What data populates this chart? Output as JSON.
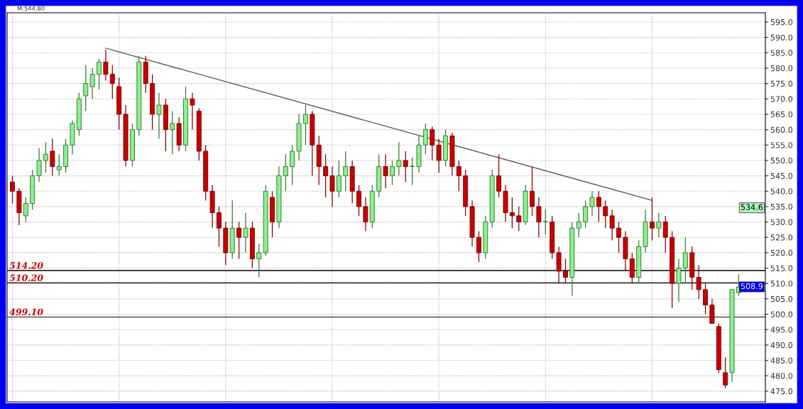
{
  "chart_data": {
    "type": "candlestick",
    "categories": [
      null,
      null,
      null,
      null,
      null,
      null,
      null,
      null,
      null,
      null,
      null,
      null,
      null,
      null,
      null,
      null,
      null,
      null,
      null,
      null,
      null,
      null,
      null,
      null,
      null,
      null,
      null,
      null,
      null,
      null,
      null,
      null,
      null,
      null,
      null,
      null,
      null,
      null,
      null,
      null,
      null,
      null,
      null,
      null,
      null,
      null,
      null,
      null,
      null,
      null,
      null,
      null,
      null,
      null,
      null,
      null,
      null,
      null,
      null,
      null,
      null,
      null,
      null,
      null,
      null,
      null,
      null,
      null,
      null,
      null,
      null,
      null,
      null,
      null,
      null,
      null,
      null,
      null,
      null,
      null,
      null,
      null,
      null,
      null,
      null,
      null,
      null,
      null,
      null,
      null,
      null,
      null,
      null,
      null,
      null,
      null,
      null,
      null,
      null,
      null,
      null,
      null,
      null,
      null,
      null,
      null,
      null,
      null,
      null,
      null
    ],
    "ohlc": [
      [
        543,
        545,
        536,
        540
      ],
      [
        540,
        541,
        529,
        533
      ],
      [
        532,
        538,
        530,
        536
      ],
      [
        536,
        547,
        534,
        545
      ],
      [
        545,
        554,
        543,
        550
      ],
      [
        550,
        556,
        546,
        552
      ],
      [
        553,
        557,
        545,
        548
      ],
      [
        547,
        552,
        545,
        548
      ],
      [
        548,
        557,
        546,
        555
      ],
      [
        555,
        563,
        552,
        562
      ],
      [
        560,
        572,
        558,
        570
      ],
      [
        571,
        581,
        566,
        575
      ],
      [
        574,
        580,
        570,
        578
      ],
      [
        578,
        583,
        573,
        582
      ],
      [
        582,
        586,
        576,
        578
      ],
      [
        578,
        581,
        570,
        575
      ],
      [
        574,
        577,
        560,
        565
      ],
      [
        565,
        568,
        548,
        550
      ],
      [
        550,
        562,
        548,
        560
      ],
      [
        560,
        584,
        558,
        582
      ],
      [
        582,
        584,
        572,
        575
      ],
      [
        575,
        578,
        560,
        565
      ],
      [
        565,
        572,
        557,
        568
      ],
      [
        568,
        570,
        553,
        560
      ],
      [
        560,
        566,
        552,
        562
      ],
      [
        562,
        564,
        553,
        555
      ],
      [
        555,
        574,
        553,
        570
      ],
      [
        570,
        572,
        560,
        568
      ],
      [
        566,
        567,
        550,
        553
      ],
      [
        553,
        555,
        537,
        540
      ],
      [
        540,
        542,
        528,
        533
      ],
      [
        533,
        535,
        522,
        528
      ],
      [
        528,
        530,
        516,
        520
      ],
      [
        520,
        537,
        518,
        528
      ],
      [
        528,
        530,
        518,
        525
      ],
      [
        525,
        533,
        520,
        528
      ],
      [
        528,
        530,
        515,
        518
      ],
      [
        518,
        523,
        512,
        520
      ],
      [
        520,
        542,
        519,
        540
      ],
      [
        538,
        540,
        525,
        530
      ],
      [
        530,
        548,
        528,
        545
      ],
      [
        545,
        552,
        540,
        548
      ],
      [
        548,
        555,
        542,
        553
      ],
      [
        553,
        565,
        550,
        562
      ],
      [
        562,
        568,
        555,
        565
      ],
      [
        565,
        566,
        545,
        555
      ],
      [
        555,
        558,
        542,
        548
      ],
      [
        548,
        552,
        538,
        545
      ],
      [
        545,
        548,
        535,
        540
      ],
      [
        540,
        550,
        538,
        545
      ],
      [
        545,
        553,
        540,
        548
      ],
      [
        548,
        550,
        536,
        540
      ],
      [
        540,
        542,
        532,
        535
      ],
      [
        535,
        538,
        527,
        530
      ],
      [
        530,
        542,
        528,
        540
      ],
      [
        540,
        552,
        538,
        548
      ],
      [
        548,
        552,
        541,
        545
      ],
      [
        545,
        550,
        542,
        548
      ],
      [
        548,
        556,
        545,
        550
      ],
      [
        550,
        553,
        543,
        548
      ],
      [
        548,
        551,
        542,
        548
      ],
      [
        548,
        558,
        546,
        555
      ],
      [
        555,
        562,
        552,
        560
      ],
      [
        560,
        561,
        550,
        555
      ],
      [
        555,
        557,
        546,
        550
      ],
      [
        550,
        560,
        548,
        558
      ],
      [
        558,
        559,
        545,
        548
      ],
      [
        548,
        550,
        540,
        545
      ],
      [
        545,
        547,
        532,
        535
      ],
      [
        535,
        537,
        522,
        525
      ],
      [
        525,
        527,
        517,
        520
      ],
      [
        520,
        532,
        518,
        530
      ],
      [
        530,
        547,
        528,
        545
      ],
      [
        545,
        552,
        538,
        540
      ],
      [
        540,
        542,
        530,
        533
      ],
      [
        533,
        538,
        528,
        532
      ],
      [
        532,
        535,
        527,
        530
      ],
      [
        530,
        542,
        529,
        540
      ],
      [
        540,
        548,
        532,
        535
      ],
      [
        535,
        538,
        525,
        530
      ],
      [
        530,
        534,
        526,
        530
      ],
      [
        530,
        532,
        518,
        520
      ],
      [
        520,
        522,
        510,
        514
      ],
      [
        514,
        518,
        510,
        512
      ],
      [
        512,
        530,
        506,
        528
      ],
      [
        528,
        533,
        525,
        530
      ],
      [
        530,
        537,
        528,
        535
      ],
      [
        535,
        540,
        532,
        538
      ],
      [
        538,
        540,
        530,
        535
      ],
      [
        535,
        537,
        528,
        532
      ],
      [
        532,
        534,
        524,
        528
      ],
      [
        528,
        530,
        520,
        525
      ],
      [
        525,
        527,
        514,
        518
      ],
      [
        518,
        520,
        510,
        512
      ],
      [
        512,
        524,
        510,
        522
      ],
      [
        522,
        534,
        520,
        530
      ],
      [
        530,
        538,
        524,
        528
      ],
      [
        528,
        533,
        525,
        530
      ],
      [
        530,
        532,
        520,
        525
      ],
      [
        525,
        527,
        502,
        510
      ],
      [
        510,
        518,
        504,
        515
      ],
      [
        515,
        525,
        510,
        520
      ],
      [
        520,
        522,
        508,
        512
      ],
      [
        512,
        516,
        505,
        508
      ],
      [
        508,
        510,
        500,
        503
      ],
      [
        503,
        505,
        497,
        497
      ],
      [
        496,
        497,
        481,
        482
      ],
      [
        481,
        486,
        476,
        477
      ],
      [
        481,
        508,
        478,
        508
      ],
      [
        507,
        513,
        506,
        508.9
      ]
    ],
    "colors": [
      "#c80000",
      "#c80000",
      "#90ee90",
      "#90ee90",
      "#90ee90",
      "#90ee90",
      "#c80000",
      "#90ee90",
      "#90ee90",
      "#90ee90",
      "#90ee90",
      "#90ee90",
      "#90ee90",
      "#90ee90",
      "#c80000",
      "#c80000",
      "#c80000",
      "#c80000",
      "#90ee90",
      "#90ee90",
      "#c80000",
      "#c80000",
      "#90ee90",
      "#c80000",
      "#90ee90",
      "#c80000",
      "#90ee90",
      "#c80000",
      "#c80000",
      "#c80000",
      "#c80000",
      "#c80000",
      "#c80000",
      "#90ee90",
      "#c80000",
      "#90ee90",
      "#c80000",
      "#90ee90",
      "#90ee90",
      "#c80000",
      "#90ee90",
      "#90ee90",
      "#90ee90",
      "#90ee90",
      "#90ee90",
      "#c80000",
      "#c80000",
      "#c80000",
      "#c80000",
      "#90ee90",
      "#90ee90",
      "#c80000",
      "#c80000",
      "#c80000",
      "#90ee90",
      "#90ee90",
      "#c80000",
      "#90ee90",
      "#90ee90",
      "#c80000",
      "#90ee90",
      "#90ee90",
      "#90ee90",
      "#c80000",
      "#c80000",
      "#90ee90",
      "#c80000",
      "#c80000",
      "#c80000",
      "#c80000",
      "#c80000",
      "#90ee90",
      "#90ee90",
      "#c80000",
      "#c80000",
      "#c80000",
      "#c80000",
      "#90ee90",
      "#c80000",
      "#c80000",
      "#90ee90",
      "#c80000",
      "#c80000",
      "#c80000",
      "#90ee90",
      "#90ee90",
      "#90ee90",
      "#90ee90",
      "#c80000",
      "#c80000",
      "#c80000",
      "#c80000",
      "#c80000",
      "#c80000",
      "#90ee90",
      "#90ee90",
      "#c80000",
      "#90ee90",
      "#c80000",
      "#c80000",
      "#90ee90",
      "#90ee90",
      "#c80000",
      "#c80000",
      "#c80000",
      "#c80000",
      "#c80000",
      "#c80000",
      "#90ee90",
      "#90ee90"
    ],
    "series": [
      {
        "type": "line",
        "color": "#555555",
        "values": [
          null,
          null,
          null,
          null,
          null,
          null,
          null,
          null,
          null,
          null,
          null,
          null,
          null,
          null,
          586.5,
          null,
          null,
          null,
          null,
          null,
          null,
          null,
          null,
          null,
          null,
          null,
          null,
          null,
          null,
          null,
          null,
          null,
          null,
          null,
          null,
          null,
          null,
          null,
          null,
          null,
          null,
          null,
          null,
          null,
          null,
          null,
          null,
          null,
          null,
          null,
          null,
          null,
          null,
          null,
          null,
          null,
          null,
          null,
          null,
          null,
          null,
          null,
          null,
          null,
          null,
          null,
          null,
          null,
          null,
          null,
          null,
          null,
          null,
          null,
          null,
          null,
          null,
          null,
          null,
          null,
          null,
          null,
          null,
          null,
          null,
          null,
          null,
          null,
          null,
          null,
          null,
          null,
          null,
          null,
          null,
          null,
          537,
          null,
          null,
          null,
          null,
          null,
          null,
          null,
          null,
          null,
          null,
          null,
          null,
          null
        ]
      }
    ],
    "ylim": [
      471.5,
      598
    ],
    "yticks": [
      {
        "value": 475,
        "label": "475.0"
      },
      {
        "value": 480,
        "label": "480.0"
      },
      {
        "value": 485,
        "label": "485.0"
      },
      {
        "value": 490,
        "label": "490.0"
      },
      {
        "value": 495,
        "label": "495.0"
      },
      {
        "value": 500,
        "label": "500.0"
      },
      {
        "value": 505,
        "label": "505.0"
      },
      {
        "value": 510,
        "label": "510.0"
      },
      {
        "value": 515,
        "label": "515.0"
      },
      {
        "value": 520,
        "label": "520.0"
      },
      {
        "value": 525,
        "label": "525.0"
      },
      {
        "value": 530,
        "label": "530.0"
      },
      {
        "value": 535,
        "label": "535.0"
      },
      {
        "value": 540,
        "label": "540.0"
      },
      {
        "value": 545,
        "label": "545.0"
      },
      {
        "value": 550,
        "label": "550.0"
      },
      {
        "value": 555,
        "label": "555.0"
      },
      {
        "value": 560,
        "label": "560.0"
      },
      {
        "value": 565,
        "label": "565.0"
      },
      {
        "value": 570,
        "label": "570.0"
      },
      {
        "value": 575,
        "label": "575.0"
      },
      {
        "value": 580,
        "label": "580.0"
      },
      {
        "value": 585,
        "label": "585.0"
      },
      {
        "value": 590,
        "label": "590.0"
      },
      {
        "value": 595,
        "label": "595.0"
      }
    ],
    "ref_lines": [
      {
        "axis": "y",
        "value": 514.2,
        "label": "514.20",
        "color": "#000000"
      },
      {
        "axis": "y",
        "value": 510.2,
        "label": "510.20",
        "color": "#000000"
      },
      {
        "axis": "y",
        "value": 499.1,
        "label": "499.10",
        "color": "#555555"
      }
    ],
    "annotations": [
      "M:544.80",
      {
        "text": "534.6",
        "y": 534.6
      },
      {
        "text": "508.9",
        "y": 508.9
      }
    ],
    "grid": true,
    "tick_labels": "y"
  }
}
